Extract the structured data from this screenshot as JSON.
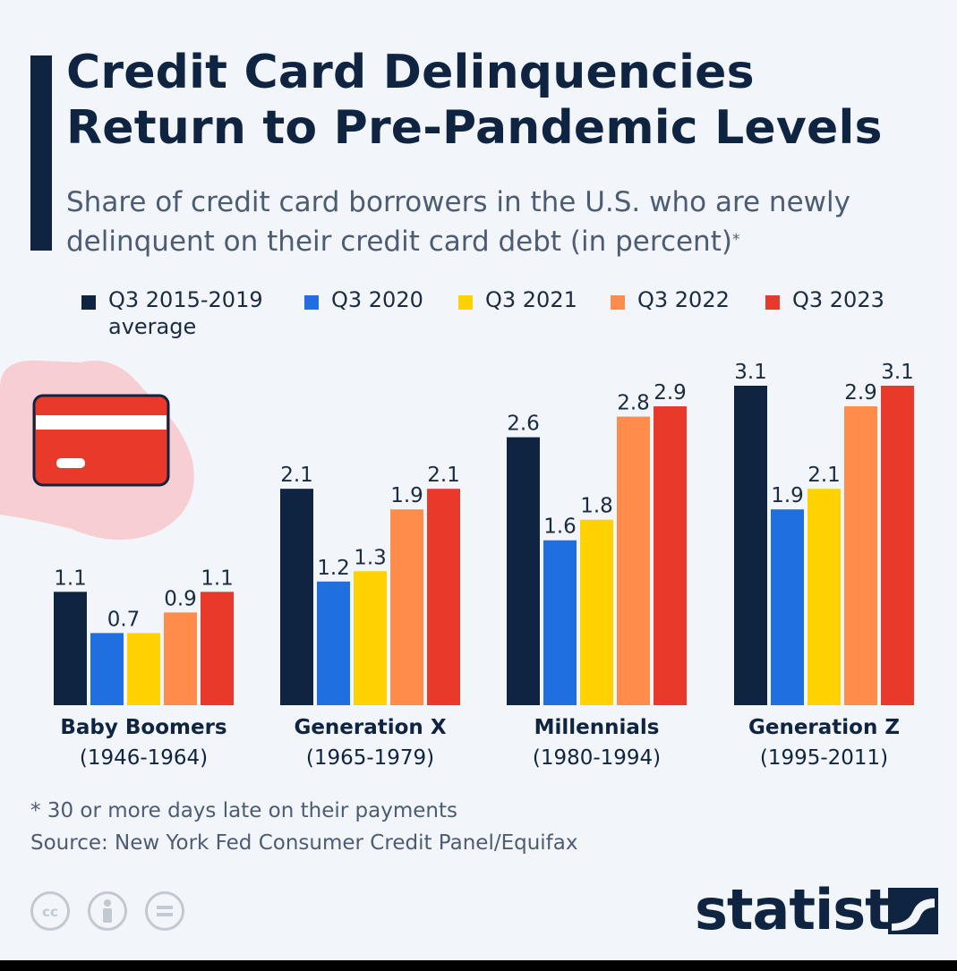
{
  "title_lines": [
    "Credit Card Delinquencies",
    "Return to Pre-Pandemic Levels"
  ],
  "subtitle_lines": [
    "Share of credit card borrowers in the U.S. who are newly",
    "delinquent on their credit card debt (in percent)"
  ],
  "subtitle_marker": "*",
  "legend": [
    {
      "label": "Q3 2015-2019",
      "label2": "average",
      "color": "#0f2440"
    },
    {
      "label": "Q3 2020",
      "label2": "",
      "color": "#1f6fe0"
    },
    {
      "label": "Q3 2021",
      "label2": "",
      "color": "#ffd200"
    },
    {
      "label": "Q3 2022",
      "label2": "",
      "color": "#ff8c4a"
    },
    {
      "label": "Q3 2023",
      "label2": "",
      "color": "#e8392b"
    }
  ],
  "chart_data": {
    "type": "bar",
    "categories": [
      "Baby Boomers",
      "Generation X",
      "Millennials",
      "Generation Z"
    ],
    "category_ranges": [
      "(1946-1964)",
      "(1965-1979)",
      "(1980-1994)",
      "(1995-2011)"
    ],
    "series": [
      {
        "name": "Q3 2015-2019 average",
        "color": "#0f2440",
        "values": [
          1.1,
          2.1,
          2.6,
          3.1
        ]
      },
      {
        "name": "Q3 2020",
        "color": "#1f6fe0",
        "values": [
          0.7,
          1.2,
          1.6,
          1.9
        ]
      },
      {
        "name": "Q3 2021",
        "color": "#ffd200",
        "values": [
          0.7,
          1.3,
          1.8,
          2.1
        ]
      },
      {
        "name": "Q3 2022",
        "color": "#ff8c4a",
        "values": [
          0.9,
          1.9,
          2.8,
          2.9
        ]
      },
      {
        "name": "Q3 2023",
        "color": "#e8392b",
        "values": [
          1.1,
          2.1,
          2.9,
          3.1
        ]
      }
    ],
    "value_labels": [
      [
        "1.1",
        "0.7",
        "",
        "0.9",
        "1.1"
      ],
      [
        "2.1",
        "1.2",
        "1.3",
        "1.9",
        "2.1"
      ],
      [
        "2.6",
        "1.6",
        "1.8",
        "2.8",
        "2.9"
      ],
      [
        "3.1",
        "1.9",
        "2.1",
        "2.9",
        "3.1"
      ]
    ],
    "ylim": [
      0,
      3.1
    ],
    "grid": false,
    "legend_position": "top"
  },
  "footnote": "* 30 or more days late on their payments",
  "source": "Source: New York Fed Consumer Credit Panel/Equifax",
  "license_icons": [
    "cc-icon",
    "attribution-icon",
    "no-derivatives-icon"
  ],
  "brand": "statista",
  "colors": {
    "accent": "#0f2440",
    "card_red": "#e8392b",
    "card_bg": "#f7cfd2"
  }
}
